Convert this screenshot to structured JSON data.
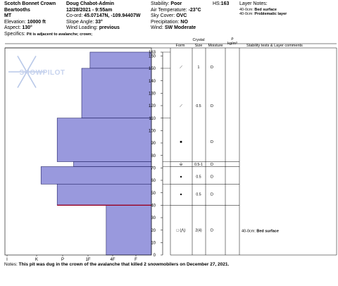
{
  "header": {
    "col1": {
      "location": "Scotch Bonnet Crown",
      "range": "Beartooths",
      "state": "MT",
      "elevation_label": "Elevation:",
      "elevation": "10000 ft",
      "aspect_label": "Aspect:",
      "aspect": "130°",
      "specifics_label": "Specifics:",
      "specifics": "Pit is adjacent to avalanche; crown;"
    },
    "col2": {
      "observer": "Doug Chabot-Admin",
      "datetime": "12/28/2021 - 9:55am",
      "coord_label": "Co-ord:",
      "coord": "45.07147N, -109.94407W",
      "slope_label": "Slope Angle:",
      "slope": "33°",
      "wind_loading_label": "Wind Loading:",
      "wind_loading": "previous"
    },
    "col3": {
      "stability_label": "Stability:",
      "stability": "Poor",
      "air_temp_label": "Air Temperature:",
      "air_temp": "-23°C",
      "sky_label": "Sky Cover:",
      "sky": "OVC",
      "precip_label": "Precipitation:",
      "precip": "NO",
      "wind_label": "Wind:",
      "wind": "SW Moderate"
    },
    "col4": {
      "hs_label": "HS:",
      "hs": "163"
    },
    "layer_notes": {
      "title": "Layer Notes:",
      "items": [
        {
          "depth": "40-0cm:",
          "text": "Bed surface"
        },
        {
          "depth": "40-0cm:",
          "text": "Problematic layer"
        }
      ]
    }
  },
  "watermark": "SNOWPILOT",
  "table_headers": {
    "form": "Form",
    "crystal_top": "Crystal",
    "size": "Size",
    "moisture": "Moisture",
    "rho_top": "ρ",
    "rho_bottom": "kg/m³",
    "stability": "Stability tests & Layer comments"
  },
  "layer_rows": [
    {
      "form": "⟋",
      "size": "1",
      "moisture": "D"
    },
    {
      "form": "⟋",
      "size": "0.5",
      "moisture": "D"
    },
    {
      "form": "■",
      "size": "",
      "moisture": "D"
    },
    {
      "form": "⊖",
      "size": "0.5-1",
      "moisture": "D"
    },
    {
      "form": "●",
      "size": "0.5",
      "moisture": "D"
    },
    {
      "form": "●",
      "size": "0.5",
      "moisture": "D"
    },
    {
      "form": "□ (⋀)",
      "size": "2(4)",
      "moisture": "D"
    }
  ],
  "comment": {
    "depth": "40-0cm:",
    "text": "Bed surface"
  },
  "chart_data": {
    "type": "bar",
    "orientation": "horizontal-profile",
    "y_ticks": [
      0,
      10,
      20,
      30,
      40,
      50,
      60,
      70,
      80,
      90,
      100,
      110,
      120,
      130,
      140,
      150,
      160,
      163
    ],
    "y_range": [
      0,
      163
    ],
    "hardness_categories": [
      "I",
      "F",
      "4F",
      "1F",
      "P",
      "K"
    ],
    "layers": [
      {
        "bottom": 150,
        "top": 163,
        "hardness": "4F+"
      },
      {
        "bottom": 110,
        "top": 150,
        "hardness": "1F-"
      },
      {
        "bottom": 75,
        "top": 110,
        "hardness": "P-"
      },
      {
        "bottom": 71,
        "top": 75,
        "hardness": "1F"
      },
      {
        "bottom": 57,
        "top": 71,
        "hardness": "P+"
      },
      {
        "bottom": 40,
        "top": 57,
        "hardness": "P-"
      },
      {
        "bottom": 0,
        "top": 40,
        "hardness": "4F-"
      }
    ],
    "marker_depth": 40
  },
  "notes": {
    "label": "Notes:",
    "text": "This pit was dug in the crown of the avalanche that killed 2 snowmobilers on December 27, 2021."
  }
}
